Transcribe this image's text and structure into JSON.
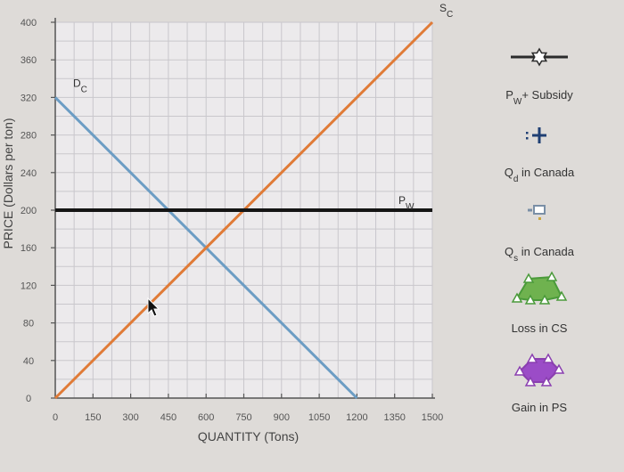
{
  "chart_data": {
    "type": "line",
    "xlabel": "QUANTITY (Tons)",
    "ylabel": "PRICE (Dollars per ton)",
    "xlim": [
      0,
      1500
    ],
    "ylim": [
      0,
      400
    ],
    "x_ticks": [
      0,
      150,
      300,
      450,
      600,
      750,
      900,
      1050,
      1200,
      1350,
      1500
    ],
    "y_ticks": [
      0,
      40,
      80,
      120,
      160,
      200,
      240,
      280,
      320,
      360,
      400
    ],
    "grid": true,
    "series": [
      {
        "name": "D",
        "subscript": "C",
        "color": "#6c9dc4",
        "x": [
          0,
          1200
        ],
        "y": [
          320,
          0
        ]
      },
      {
        "name": "S",
        "subscript": "C",
        "color": "#e07b37",
        "x": [
          0,
          1500
        ],
        "y": [
          0,
          400
        ]
      },
      {
        "name": "P",
        "subscript": "W",
        "color": "#151515",
        "x": [
          0,
          1500
        ],
        "y": [
          200,
          200
        ]
      }
    ]
  },
  "legend": {
    "items": [
      {
        "main": "P",
        "sub": "W",
        "rest": "+ Subsidy",
        "icon": "star-line-icon",
        "color": "#2b2b2b"
      },
      {
        "main": "Q",
        "sub": "d",
        "rest": " in Canada",
        "icon": "plus-marker-icon",
        "color": "#1f3f73"
      },
      {
        "main": "Q",
        "sub": "s",
        "rest": " in Canada",
        "icon": "square-marker-icon",
        "color": "#7a8fa6"
      },
      {
        "main": "",
        "sub": "",
        "rest": "Loss in CS",
        "icon": "green-polygon-icon",
        "color": "#4a9a3a"
      },
      {
        "main": "",
        "sub": "",
        "rest": "Gain in PS",
        "icon": "purple-polygon-icon",
        "color": "#8a3fb0"
      }
    ]
  }
}
